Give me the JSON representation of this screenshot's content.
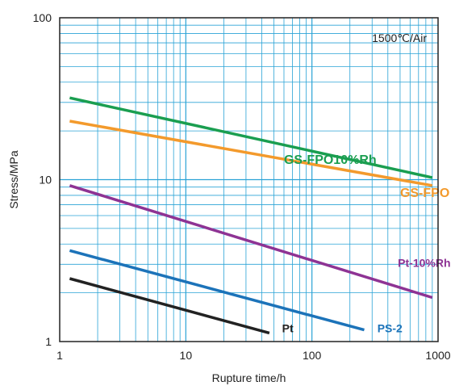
{
  "chart_data": {
    "type": "line",
    "title": "",
    "xlabel": "Rupture time/h",
    "ylabel": "Stress/MPa",
    "xscale": "log",
    "yscale": "log",
    "xlim": [
      1,
      1000
    ],
    "ylim": [
      1,
      100
    ],
    "grid": true,
    "grid_color": "#2aa3d6",
    "legend": "none",
    "annotation": "1500℃/Air",
    "x_ticks": [
      "1",
      "10",
      "100",
      "1000"
    ],
    "y_ticks": [
      "1",
      "10",
      "100"
    ],
    "series": [
      {
        "name": "GS-FPO10%Rh",
        "color": "#1a9e50",
        "label_size": 16,
        "label_x": 60,
        "label_y": 12.5,
        "points": [
          [
            1.2,
            32
          ],
          [
            900,
            10.3
          ]
        ]
      },
      {
        "name": "GS-FPO",
        "color": "#f39a2c",
        "label_size": 16,
        "label_x": 500,
        "label_y": 7.8,
        "points": [
          [
            1.2,
            23
          ],
          [
            900,
            9.2
          ]
        ]
      },
      {
        "name": "Pt-10%Rh",
        "color": "#8e3394",
        "label_size": 14,
        "label_x": 480,
        "label_y": 2.9,
        "points": [
          [
            1.2,
            9.2
          ],
          [
            900,
            1.87
          ]
        ]
      },
      {
        "name": "PS-2",
        "color": "#1c73b9",
        "label_size": 14,
        "label_x": 330,
        "label_y": 1.14,
        "points": [
          [
            1.2,
            3.65
          ],
          [
            260,
            1.18
          ]
        ]
      },
      {
        "name": "Pt",
        "color": "#222222",
        "label_size": 14,
        "label_x": 58,
        "label_y": 1.14,
        "points": [
          [
            1.2,
            2.45
          ],
          [
            46,
            1.13
          ]
        ]
      }
    ]
  }
}
